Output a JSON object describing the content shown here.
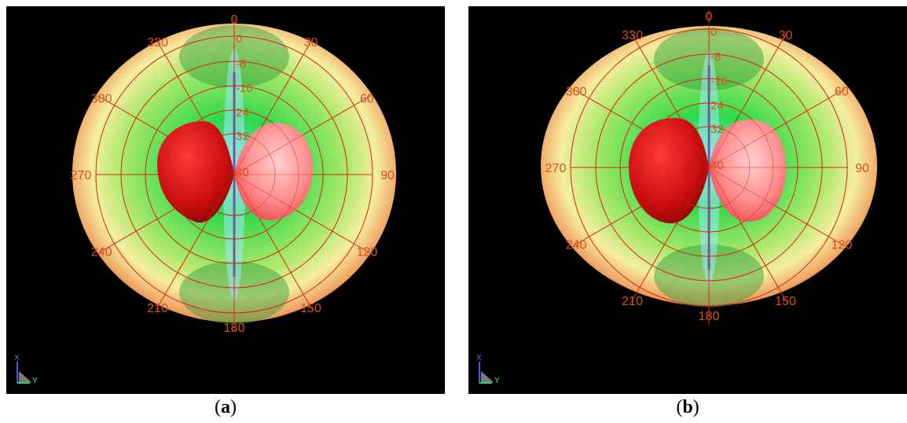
{
  "panels": [
    {
      "id": "a",
      "caption_letter": "a",
      "angle_labels": [
        "0",
        "30",
        "60",
        "90",
        "120",
        "150",
        "180",
        "210",
        "240",
        "270",
        "300",
        "330"
      ],
      "radial_labels": [
        "0",
        "-8",
        "-16",
        "24",
        "32",
        "40"
      ],
      "axis_labels": {
        "x": "X",
        "y": "Y"
      }
    },
    {
      "id": "b",
      "caption_letter": "b",
      "angle_labels": [
        "0",
        "30",
        "60",
        "90",
        "120",
        "150",
        "180",
        "210",
        "240",
        "270",
        "300",
        "330"
      ],
      "radial_labels": [
        "0",
        "-8",
        "-16",
        "24",
        "32",
        "40"
      ],
      "axis_labels": {
        "x": "X",
        "y": "Y"
      }
    }
  ],
  "colors": {
    "grid": "#d42a1a",
    "label": "#d8501e",
    "outer_edge": "#d85a2a",
    "outer_light": "#f5eea0",
    "inner_green": "#2ed84a",
    "inner_cyan": "#7fe0d8",
    "lobe_dark": "#c80c0c",
    "lobe_light": "#ff9090"
  }
}
